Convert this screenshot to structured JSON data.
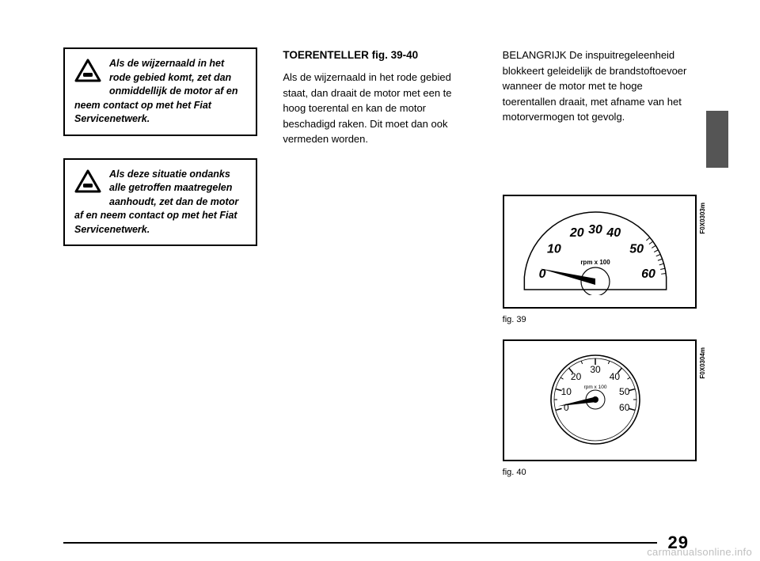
{
  "page_number": "29",
  "watermark": "carmanualsonline.info",
  "warning1": {
    "text": "Als de wijzernaald in het rode gebied komt, zet dan onmiddellijk de motor af en neem contact op met het Fiat Servicenetwerk."
  },
  "warning2": {
    "text": "Als deze situatie ondanks alle getroffen maatregelen aanhoudt, zet dan de motor af en neem contact op met het Fiat Servicenetwerk."
  },
  "col2": {
    "heading": "TOERENTELLER fig. 39-40",
    "para": "Als de wijzernaald in het rode gebied staat, dan draait de motor met een te hoog toerental en kan de motor beschadigd raken.  Dit moet dan ook vermeden worden."
  },
  "col3": {
    "para": "BELANGRIJK De inspuitregeleenheid blokkeert geleidelijk de brandstoftoevoer wanneer de motor met te hoge toerentallen draait, met afname van het motorvermogen tot gevolg."
  },
  "fig39": {
    "caption": "fig. 39",
    "side_label": "F0X0303m",
    "sub_label": "rpm x 100",
    "ticks": [
      "0",
      "10",
      "20",
      "30",
      "40",
      "50",
      "60"
    ],
    "tick_angles_deg": [
      -170,
      -140,
      -110,
      -90,
      -70,
      -40,
      -10
    ],
    "tick_fontsize": 16,
    "tick_fontweight": 900,
    "sub_fontsize": 8,
    "stroke": "#000000",
    "bg": "#ffffff"
  },
  "fig40": {
    "caption": "fig. 40",
    "side_label": "F0X0304m",
    "sub_label": "rpm x 100",
    "ticks": [
      "0",
      "10",
      "20",
      "30",
      "40",
      "50",
      "60"
    ],
    "tick_angles_deg": [
      -195,
      -165,
      -130,
      -90,
      -50,
      -15,
      15
    ],
    "tick_fontsize": 12,
    "tick_fontweight": 400,
    "sub_fontsize": 6.5,
    "stroke": "#000000",
    "bg": "#ffffff"
  },
  "side_tab_color": "#555555"
}
